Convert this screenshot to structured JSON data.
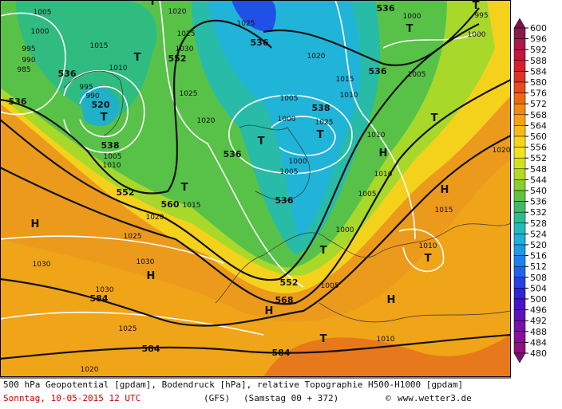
{
  "map": {
    "geopotential_labels": [
      "536",
      "536",
      "520",
      "538",
      "552",
      "552",
      "536",
      "536",
      "536",
      "538",
      "536",
      "536",
      "560",
      "552",
      "568",
      "584",
      "584",
      "584"
    ],
    "pressure_labels": [
      "1005",
      "1000",
      "995",
      "990",
      "985",
      "1015",
      "1010",
      "995",
      "990",
      "1005",
      "1010",
      "1020",
      "1025",
      "1030",
      "1025",
      "1020",
      "1025",
      "1020",
      "1015",
      "1010",
      "1005",
      "1000",
      "1025",
      "1000",
      "1005",
      "1010",
      "1010",
      "1005",
      "1000",
      "1005",
      "1010",
      "1015",
      "1020",
      "1015",
      "1025",
      "1030",
      "1030",
      "1030",
      "1025",
      "1020",
      "1010",
      "1005",
      "1000",
      "1000",
      "995",
      "1020"
    ],
    "centers": [
      "T",
      "T",
      "T",
      "T",
      "T",
      "T",
      "T",
      "T",
      "T",
      "T",
      "T",
      "T",
      "H",
      "H",
      "H",
      "H",
      "H",
      "H"
    ]
  },
  "colorbar": {
    "ticks": [
      600,
      596,
      592,
      588,
      584,
      580,
      576,
      572,
      568,
      564,
      560,
      556,
      552,
      548,
      544,
      540,
      536,
      532,
      528,
      524,
      520,
      516,
      512,
      508,
      504,
      500,
      496,
      492,
      488,
      484,
      480
    ]
  },
  "footer": {
    "description": "500 hPa Geopotential [gpdam], Bodendruck [hPa], relative Topographie H500-H1000 [gpdam]",
    "date": "Sonntag, 10-05-2015  12 UTC",
    "model": "(GFS)",
    "run": "(Samstag 00 + 372)",
    "copyright": "©",
    "source": "www.wetter3.de"
  }
}
